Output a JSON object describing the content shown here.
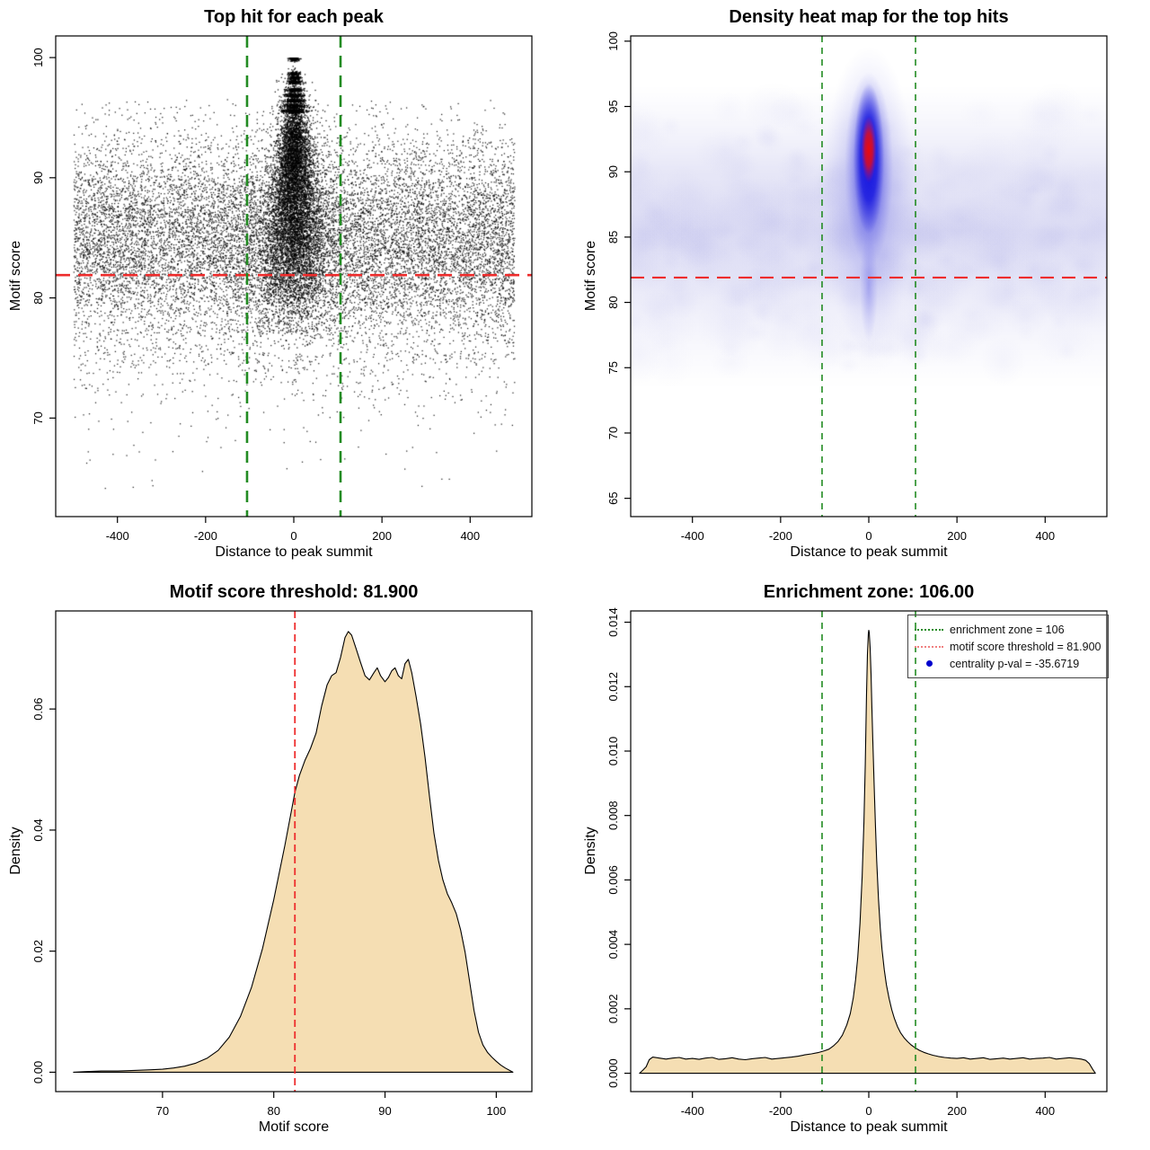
{
  "figure": {
    "background": "#FFFFFF",
    "threshold": 81.9,
    "enrichment_zone": 106,
    "centrality_pval": -35.6719
  },
  "colors": {
    "threshold_red": "#EE2C2C",
    "zone_green": "#228B22",
    "density_fill": "#F5DEB3",
    "density_stroke": "#000000",
    "legend_red": "#F08080",
    "legend_blue": "#0000CD",
    "heat_scale": [
      "#FFFFFF",
      "#C9C9EE",
      "#1515E0",
      "#EE0A0A"
    ]
  },
  "chart_data": [
    {
      "type": "scatter",
      "title": "Top hit for each peak",
      "xlabel": "Distance to peak summit",
      "ylabel": "Motif score",
      "xlim": [
        -540,
        540
      ],
      "ylim": [
        61.8,
        101.8
      ],
      "xticks": {
        "values": [
          -400,
          -200,
          0,
          200,
          400
        ],
        "labels": [
          "-400",
          "-200",
          "0",
          "200",
          "400"
        ]
      },
      "yticks": {
        "values": [
          70,
          80,
          90,
          100
        ],
        "labels": [
          "70",
          "80",
          "90",
          "100"
        ]
      },
      "lines": [
        {
          "type": "h",
          "at": 81.9,
          "color": "#EE2C2C",
          "width": 2.6,
          "dash": "16,9"
        },
        {
          "type": "v",
          "at": -106,
          "color": "#228B22",
          "width": 2.6,
          "dash": "13,9"
        },
        {
          "type": "v",
          "at": 106,
          "color": "#228B22",
          "width": 2.6,
          "dash": "13,9"
        }
      ],
      "generator": {
        "point_color": "#000000",
        "background": {
          "n": 13500,
          "x_uniform": [
            -500,
            500
          ],
          "y_mean": 84.8,
          "y_sd": 4.3,
          "y_max": 96.6
        },
        "low_tail": {
          "n": 420,
          "x_uniform": [
            -500,
            500
          ],
          "y_start": 75.5,
          "y_exp_scale": 3.2
        },
        "central": {
          "n": 9800,
          "y_mix": [
            [
              86,
              4.2,
              0.55
            ],
            [
              92.3,
              2.3,
              0.25
            ]
          ],
          "bands": [
            95.6,
            96.0,
            96.45,
            96.9,
            97.35,
            98.0,
            98.35,
            98.7,
            99.9,
            100.0
          ],
          "band_share": 0.2
        }
      }
    },
    {
      "type": "heatmap",
      "title": "Density heat map for the top hits",
      "xlabel": "Distance to peak summit",
      "ylabel": "Motif score",
      "xlim": [
        -540,
        540
      ],
      "ylim": [
        63.6,
        100.4
      ],
      "xticks": {
        "values": [
          -400,
          -200,
          0,
          200,
          400
        ],
        "labels": [
          "-400",
          "-200",
          "0",
          "200",
          "400"
        ]
      },
      "yticks": {
        "values": [
          65,
          70,
          75,
          80,
          85,
          90,
          95,
          100
        ],
        "labels": [
          "65",
          "70",
          "75",
          "80",
          "85",
          "90",
          "95",
          "100"
        ]
      },
      "lines": [
        {
          "type": "h",
          "at": 81.9,
          "color": "#EE2C2C",
          "width": 2.2,
          "dash": "15,9"
        },
        {
          "type": "v",
          "at": -106,
          "color": "#228B22",
          "width": 1.6,
          "dash": "7,6"
        },
        {
          "type": "v",
          "at": 106,
          "color": "#228B22",
          "width": 1.6,
          "dash": "7,6"
        }
      ],
      "density_model": {
        "band": {
          "score_center": 84.5,
          "score_top": 96.5,
          "score_bottom": 73.5
        },
        "core": {
          "x": 0,
          "halo_center": 88,
          "blue_center": 91,
          "red_center": 91.7,
          "score_top": 99.6,
          "score_bottom": 76.5
        }
      }
    },
    {
      "type": "area",
      "title": "Motif score threshold: 81.900",
      "xlabel": "Motif score",
      "ylabel": "Density",
      "xlim": [
        60.4,
        103.2
      ],
      "ylim": [
        -0.0032,
        0.0762
      ],
      "xticks": {
        "values": [
          70,
          80,
          90,
          100
        ],
        "labels": [
          "70",
          "80",
          "90",
          "100"
        ]
      },
      "yticks": {
        "values": [
          0,
          0.02,
          0.04,
          0.06
        ],
        "labels": [
          "0.00",
          "0.02",
          "0.04",
          "0.06"
        ]
      },
      "fill": "#F5DEB3",
      "lines": [
        {
          "type": "v",
          "at": 81.9,
          "color": "#EE2C2C",
          "width": 1.8,
          "dash": "8,5"
        }
      ],
      "points": [
        [
          62.0,
          0.0
        ],
        [
          63.0,
          0.0001
        ],
        [
          64.5,
          0.0002
        ],
        [
          66,
          0.0002
        ],
        [
          67.5,
          0.0003
        ],
        [
          69,
          0.0004
        ],
        [
          70,
          0.0005
        ],
        [
          71,
          0.0007
        ],
        [
          72,
          0.001
        ],
        [
          73,
          0.0015
        ],
        [
          74,
          0.0023
        ],
        [
          75,
          0.0036
        ],
        [
          76,
          0.0058
        ],
        [
          77,
          0.0092
        ],
        [
          78,
          0.014
        ],
        [
          79,
          0.0205
        ],
        [
          80,
          0.0285
        ],
        [
          81,
          0.0375
        ],
        [
          81.9,
          0.0462
        ],
        [
          82.3,
          0.049
        ],
        [
          82.8,
          0.0515
        ],
        [
          83.3,
          0.0535
        ],
        [
          83.8,
          0.056
        ],
        [
          84.3,
          0.0605
        ],
        [
          84.8,
          0.064
        ],
        [
          85.2,
          0.0655
        ],
        [
          85.6,
          0.066
        ],
        [
          86.0,
          0.0685
        ],
        [
          86.4,
          0.0718
        ],
        [
          86.7,
          0.0728
        ],
        [
          87.0,
          0.0722
        ],
        [
          87.4,
          0.07
        ],
        [
          87.8,
          0.0677
        ],
        [
          88.2,
          0.0655
        ],
        [
          88.6,
          0.0648
        ],
        [
          89.0,
          0.066
        ],
        [
          89.3,
          0.0668
        ],
        [
          89.6,
          0.0655
        ],
        [
          90.0,
          0.0645
        ],
        [
          90.3,
          0.0652
        ],
        [
          90.6,
          0.0663
        ],
        [
          90.9,
          0.0668
        ],
        [
          91.2,
          0.0655
        ],
        [
          91.5,
          0.065
        ],
        [
          91.8,
          0.0675
        ],
        [
          92.1,
          0.0682
        ],
        [
          92.4,
          0.066
        ],
        [
          92.8,
          0.062
        ],
        [
          93.2,
          0.0575
        ],
        [
          93.6,
          0.052
        ],
        [
          94.0,
          0.0455
        ],
        [
          94.4,
          0.0395
        ],
        [
          94.8,
          0.035
        ],
        [
          95.2,
          0.0318
        ],
        [
          95.6,
          0.0295
        ],
        [
          96.0,
          0.028
        ],
        [
          96.4,
          0.0262
        ],
        [
          96.8,
          0.0235
        ],
        [
          97.2,
          0.0198
        ],
        [
          97.6,
          0.015
        ],
        [
          98.0,
          0.0102
        ],
        [
          98.4,
          0.0066
        ],
        [
          98.8,
          0.0045
        ],
        [
          99.2,
          0.0033
        ],
        [
          99.6,
          0.0025
        ],
        [
          100.0,
          0.0018
        ],
        [
          100.4,
          0.0012
        ],
        [
          100.8,
          0.0007
        ],
        [
          101.2,
          0.0003
        ],
        [
          101.5,
          0.0
        ]
      ]
    },
    {
      "type": "area",
      "title": "Enrichment zone: 106.00",
      "xlabel": "Distance to peak summit",
      "ylabel": "Density",
      "xlim": [
        -540,
        540
      ],
      "ylim": [
        -0.00057,
        0.01435
      ],
      "xticks": {
        "values": [
          -400,
          -200,
          0,
          200,
          400
        ],
        "labels": [
          "-400",
          "-200",
          "0",
          "200",
          "400"
        ]
      },
      "yticks": {
        "values": [
          0,
          0.002,
          0.004,
          0.006,
          0.008,
          0.01,
          0.012,
          0.014
        ],
        "labels": [
          "0.000",
          "0.002",
          "0.004",
          "0.006",
          "0.008",
          "0.010",
          "0.012",
          "0.014"
        ]
      },
      "fill": "#F5DEB3",
      "lines": [
        {
          "type": "v",
          "at": -106,
          "color": "#228B22",
          "width": 1.6,
          "dash": "7,6"
        },
        {
          "type": "v",
          "at": 106,
          "color": "#228B22",
          "width": 1.6,
          "dash": "7,6"
        }
      ],
      "legend": {
        "items": [
          {
            "label": "enrichment zone = 106",
            "swatch": "line",
            "color": "#228B22"
          },
          {
            "label": "motif score threshold = 81.900",
            "swatch": "line",
            "color": "#F08080"
          },
          {
            "label": "centrality p-val = -35.6719",
            "swatch": "point",
            "color": "#0000CD"
          }
        ]
      },
      "points": [
        [
          -520,
          0.0
        ],
        [
          -512,
          0.0001
        ],
        [
          -505,
          0.0002
        ],
        [
          -498,
          0.00042
        ],
        [
          -490,
          0.0005
        ],
        [
          -475,
          0.00047
        ],
        [
          -460,
          0.00044
        ],
        [
          -445,
          0.00047
        ],
        [
          -430,
          0.00049
        ],
        [
          -415,
          0.00044
        ],
        [
          -400,
          0.00046
        ],
        [
          -385,
          0.00043
        ],
        [
          -370,
          0.00047
        ],
        [
          -355,
          0.00049
        ],
        [
          -340,
          0.00043
        ],
        [
          -325,
          0.00045
        ],
        [
          -310,
          0.00048
        ],
        [
          -295,
          0.00044
        ],
        [
          -280,
          0.00042
        ],
        [
          -265,
          0.00045
        ],
        [
          -250,
          0.00047
        ],
        [
          -235,
          0.00049
        ],
        [
          -220,
          0.00044
        ],
        [
          -205,
          0.00046
        ],
        [
          -190,
          0.00048
        ],
        [
          -175,
          0.0005
        ],
        [
          -160,
          0.00053
        ],
        [
          -145,
          0.00057
        ],
        [
          -130,
          0.0006
        ],
        [
          -115,
          0.00064
        ],
        [
          -100,
          0.0007
        ],
        [
          -90,
          0.00075
        ],
        [
          -80,
          0.00085
        ],
        [
          -70,
          0.00098
        ],
        [
          -60,
          0.00118
        ],
        [
          -50,
          0.0015
        ],
        [
          -42,
          0.00185
        ],
        [
          -35,
          0.00235
        ],
        [
          -30,
          0.0029
        ],
        [
          -25,
          0.0036
        ],
        [
          -20,
          0.00465
        ],
        [
          -15,
          0.0061
        ],
        [
          -11,
          0.0078
        ],
        [
          -8,
          0.0096
        ],
        [
          -5,
          0.0118
        ],
        [
          -3,
          0.013
        ],
        [
          -1,
          0.01365
        ],
        [
          0,
          0.01375
        ],
        [
          1,
          0.01368
        ],
        [
          3,
          0.0132
        ],
        [
          5,
          0.0124
        ],
        [
          7,
          0.0114
        ],
        [
          9,
          0.0104
        ],
        [
          12,
          0.009
        ],
        [
          15,
          0.0077
        ],
        [
          18,
          0.0066
        ],
        [
          22,
          0.0054
        ],
        [
          26,
          0.0045
        ],
        [
          30,
          0.00385
        ],
        [
          35,
          0.00322
        ],
        [
          40,
          0.00275
        ],
        [
          46,
          0.00232
        ],
        [
          52,
          0.00198
        ],
        [
          58,
          0.0017
        ],
        [
          65,
          0.00145
        ],
        [
          72,
          0.00126
        ],
        [
          80,
          0.0011
        ],
        [
          88,
          0.00098
        ],
        [
          96,
          0.00088
        ],
        [
          105,
          0.00079
        ],
        [
          115,
          0.00071
        ],
        [
          125,
          0.00065
        ],
        [
          135,
          0.0006
        ],
        [
          145,
          0.00056
        ],
        [
          158,
          0.00052
        ],
        [
          172,
          0.00049
        ],
        [
          186,
          0.00047
        ],
        [
          200,
          0.00046
        ],
        [
          215,
          0.00048
        ],
        [
          230,
          0.00044
        ],
        [
          245,
          0.00046
        ],
        [
          260,
          0.00048
        ],
        [
          275,
          0.00043
        ],
        [
          290,
          0.00045
        ],
        [
          305,
          0.00047
        ],
        [
          320,
          0.00044
        ],
        [
          335,
          0.00046
        ],
        [
          350,
          0.00048
        ],
        [
          365,
          0.00044
        ],
        [
          380,
          0.00046
        ],
        [
          395,
          0.00047
        ],
        [
          410,
          0.00049
        ],
        [
          425,
          0.00044
        ],
        [
          440,
          0.00046
        ],
        [
          455,
          0.00048
        ],
        [
          470,
          0.00046
        ],
        [
          482,
          0.00044
        ],
        [
          492,
          0.0004
        ],
        [
          500,
          0.0003
        ],
        [
          508,
          0.00012
        ],
        [
          514,
          0.0
        ]
      ]
    }
  ]
}
